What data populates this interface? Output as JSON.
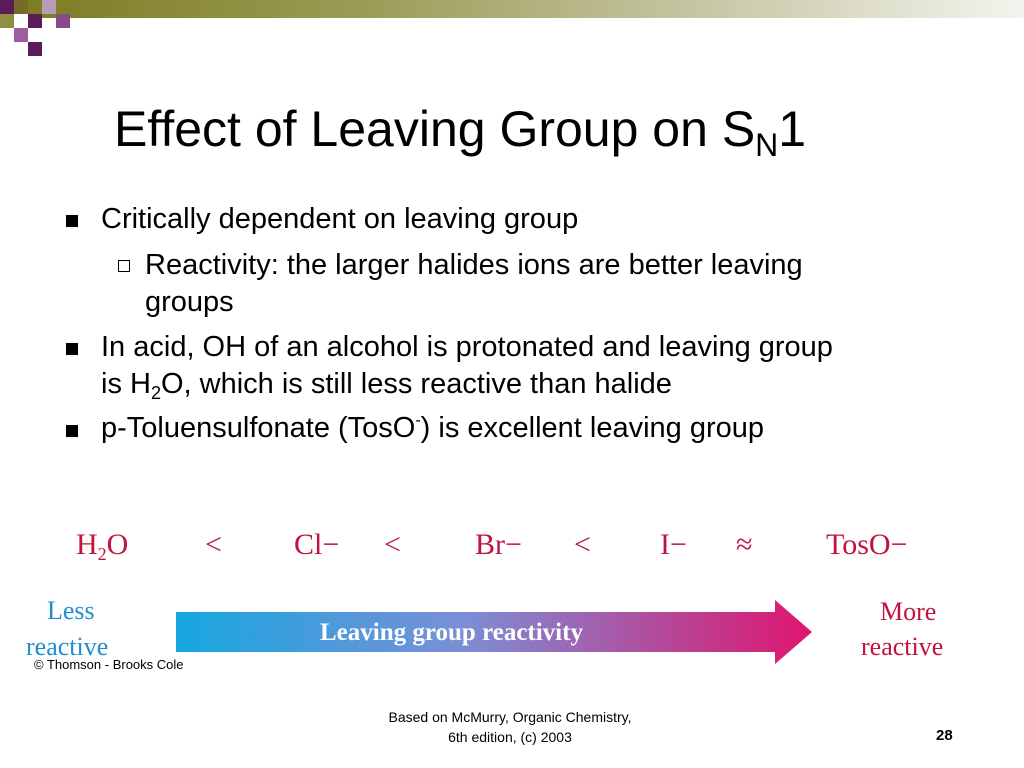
{
  "slide": {
    "title_main": "Effect of Leaving Group on S",
    "title_sub": "N",
    "title_end": "1"
  },
  "bullets": {
    "b1": "Critically dependent on leaving group",
    "b1_sub1_line1": "Reactivity:  the larger halides ions are better leaving",
    "b1_sub1_line2": "groups",
    "b2_line1": "In acid, OH of an alcohol is protonated and leaving group",
    "b2_line2_pre": "is H",
    "b2_line2_sub": "2",
    "b2_line2_post": "O, which is still less reactive than halide",
    "b3_pre": "p-Toluensulfonate (TosO",
    "b3_sup": "-",
    "b3_post": ") is excellent leaving group"
  },
  "figure": {
    "series": [
      {
        "main": "H",
        "sub": "2",
        "rest": "O"
      },
      {
        "main": "Cl−"
      },
      {
        "main": "Br−"
      },
      {
        "main": "I−"
      },
      {
        "main": "TosO−"
      }
    ],
    "relations": [
      "<",
      "<",
      "<",
      "≈"
    ],
    "arrow_label": "Leaving group reactivity",
    "left_label_1": "Less",
    "left_label_2": "reactive",
    "right_label_1": "More",
    "right_label_2": "reactive",
    "copyright": "© Thomson - Brooks Cole",
    "colors": {
      "red": "#c0143c",
      "blue": "#1f8fd0",
      "arrow_start": "#16a7e0",
      "arrow_end": "#e0156d"
    }
  },
  "footer": {
    "line1": "Based on McMurry, Organic Chemistry,",
    "line2": "6th edition, (c) 2003",
    "page": "28"
  }
}
